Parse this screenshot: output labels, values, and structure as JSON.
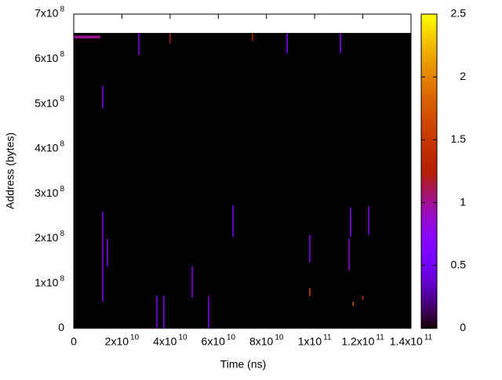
{
  "chart_data": {
    "type": "heatmap",
    "xlabel": "Time (ns)",
    "ylabel": "Address (bytes)",
    "xlim": [
      0,
      140000000000
    ],
    "ylim": [
      0,
      700000000
    ],
    "xticks": [
      0,
      {
        "value": 20000000000,
        "label": "2x10",
        "exponent": "10"
      },
      {
        "value": 40000000000,
        "label": "4x10",
        "exponent": "10"
      },
      {
        "value": 60000000000,
        "label": "6x10",
        "exponent": "10"
      },
      {
        "value": 80000000000,
        "label": "8x10",
        "exponent": "10"
      },
      {
        "value": 100000000000,
        "label": "1x10",
        "exponent": "11"
      },
      {
        "value": 120000000000,
        "label": "1.2x10",
        "exponent": "11"
      },
      {
        "value": 140000000000,
        "label": "1.4x10",
        "exponent": "11"
      }
    ],
    "yticks": [
      0,
      {
        "value": 100000000,
        "label": "1x10",
        "exponent": "8"
      },
      {
        "value": 200000000,
        "label": "2x10",
        "exponent": "8"
      },
      {
        "value": 300000000,
        "label": "3x10",
        "exponent": "8"
      },
      {
        "value": 400000000,
        "label": "4x10",
        "exponent": "8"
      },
      {
        "value": 500000000,
        "label": "5x10",
        "exponent": "8"
      },
      {
        "value": 600000000,
        "label": "6x10",
        "exponent": "8"
      },
      {
        "value": 700000000,
        "label": "7x10",
        "exponent": "8"
      }
    ],
    "colorbar_lim": [
      0,
      2.5
    ],
    "colorbar_ticks": [
      0,
      0.5,
      1,
      1.5,
      2,
      2.5
    ],
    "background": {
      "x0": 0,
      "x1": 140000000000,
      "y0": 0,
      "y1": 658000000,
      "value": 0
    },
    "band": {
      "x0": 0,
      "x1": 11000000000,
      "y0": 646000000,
      "y1": 652000000,
      "value": 1
    },
    "streaks": [
      {
        "x": 12000000000,
        "y0": 59000000,
        "y1": 260000000,
        "value": 0.7
      },
      {
        "x": 12000000000,
        "y0": 490000000,
        "y1": 540000000,
        "value": 0.7
      },
      {
        "x": 14000000000,
        "y0": 138000000,
        "y1": 199000000,
        "value": 0.7
      },
      {
        "x": 27000000000,
        "y0": 609000000,
        "y1": 658000000,
        "value": 0.7
      },
      {
        "x": 34500000000,
        "y0": 0,
        "y1": 72000000,
        "value": 0.7
      },
      {
        "x": 37400000000,
        "y0": 0,
        "y1": 72000000,
        "value": 0.7
      },
      {
        "x": 40000000000,
        "y0": 635000000,
        "y1": 658000000,
        "value": 1.2
      },
      {
        "x": 49200000000,
        "y0": 68000000,
        "y1": 138000000,
        "value": 0.7
      },
      {
        "x": 56000000000,
        "y0": 0,
        "y1": 72000000,
        "value": 0.7
      },
      {
        "x": 66100000000,
        "y0": 204000000,
        "y1": 274000000,
        "value": 0.7
      },
      {
        "x": 74200000000,
        "y0": 640000000,
        "y1": 658000000,
        "value": 1.3
      },
      {
        "x": 88600000000,
        "y0": 613000000,
        "y1": 658000000,
        "value": 0.7
      },
      {
        "x": 98000000000,
        "y0": 147000000,
        "y1": 208000000,
        "value": 0.7
      },
      {
        "x": 98000000000,
        "y0": 72000000,
        "y1": 89000000,
        "value": 1.7
      },
      {
        "x": 110700000000,
        "y0": 613000000,
        "y1": 658000000,
        "value": 0.7
      },
      {
        "x": 114300000000,
        "y0": 129000000,
        "y1": 199000000,
        "value": 0.8
      },
      {
        "x": 114900000000,
        "y0": 204000000,
        "y1": 269000000,
        "value": 0.7
      },
      {
        "x": 116000000000,
        "y0": 50000000,
        "y1": 59000000,
        "value": 1.8
      },
      {
        "x": 120000000000,
        "y0": 63000000,
        "y1": 72000000,
        "value": 1.5
      },
      {
        "x": 122400000000,
        "y0": 208000000,
        "y1": 272000000,
        "value": 0.7
      }
    ]
  }
}
